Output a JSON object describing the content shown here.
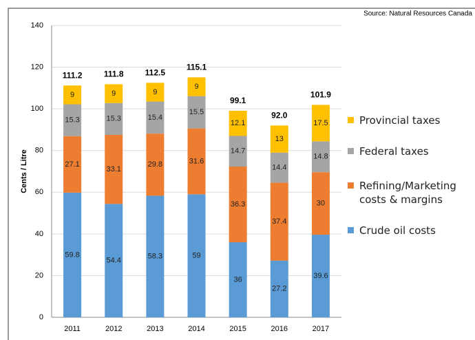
{
  "chart_data": {
    "type": "stacked_bar",
    "source": "Source: Natural Resources Canada",
    "y_label": "Cents / Litre",
    "categories": [
      "2011",
      "2012",
      "2013",
      "2014",
      "2015",
      "2016",
      "2017"
    ],
    "series": [
      {
        "name": "Crude oil costs",
        "color": "#5b9bd5",
        "values": [
          59.8,
          54.4,
          58.3,
          59,
          36,
          27.2,
          39.6
        ]
      },
      {
        "name": "Refining/Marketing costs & margins",
        "color": "#ed7d31",
        "values": [
          27.1,
          33.1,
          29.8,
          31.6,
          36.3,
          37.4,
          30
        ]
      },
      {
        "name": "Federal taxes",
        "color": "#a5a5a5",
        "values": [
          15.3,
          15.3,
          15.4,
          15.5,
          14.7,
          14.4,
          14.8
        ]
      },
      {
        "name": "Provincial taxes",
        "color": "#ffc000",
        "values": [
          9,
          9,
          9,
          9,
          12.1,
          13,
          17.5
        ]
      }
    ],
    "totals": {
      "values": [
        111.2,
        111.8,
        112.5,
        115.1,
        99.1,
        92,
        101.9
      ],
      "value_labels": [
        "111.2",
        "111.8",
        "112.5",
        "115.1",
        "99.1",
        "92.0",
        "101.9"
      ]
    },
    "ylim": [
      0,
      140
    ],
    "yticks": [
      0,
      20,
      40,
      60,
      80,
      100,
      120,
      140
    ],
    "grid": true
  }
}
